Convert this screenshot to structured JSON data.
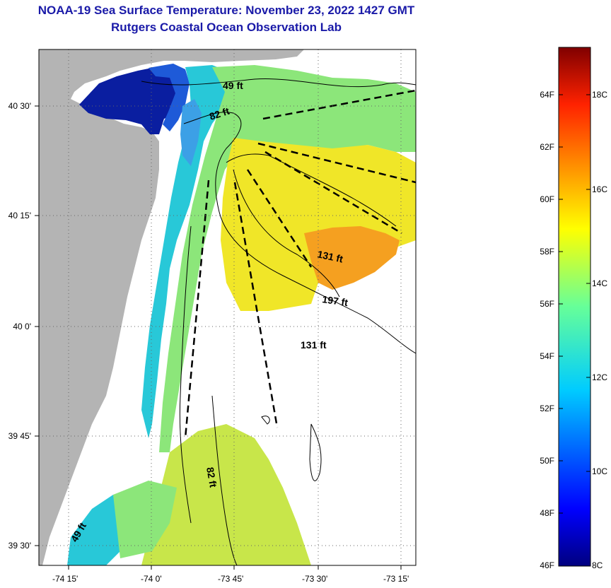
{
  "title": {
    "line1": "NOAA-19 Sea Surface Temperature:  November 23, 2022 1427 GMT",
    "line2": "Rutgers Coastal Ocean Observation Lab"
  },
  "axes": {
    "lat_ticks": [
      "40 30'",
      "40 15'",
      "40 0'",
      "39 45'",
      "39 30'"
    ],
    "lon_ticks": [
      "-74 15'",
      "-74 0'",
      "-73 45'",
      "-73 30'",
      "-73 15'"
    ]
  },
  "isobaths": [
    {
      "label": "49 ft",
      "depth_ft": 49
    },
    {
      "label": "82 ft",
      "depth_ft": 82
    },
    {
      "label": "131 ft",
      "depth_ft": 131
    },
    {
      "label": "197 ft",
      "depth_ft": 197
    },
    {
      "label": "131 ft",
      "depth_ft": 131
    },
    {
      "label": "82 ft",
      "depth_ft": 82
    },
    {
      "label": "49 ft",
      "depth_ft": 49
    }
  ],
  "colorbar": {
    "fahrenheit_labels": [
      "64F",
      "62F",
      "60F",
      "58F",
      "56F",
      "54F",
      "52F",
      "50F",
      "48F",
      "46F"
    ],
    "celsius_labels": [
      "18C",
      "16C",
      "14C",
      "12C",
      "10C",
      "8C"
    ],
    "range_c": [
      8,
      19
    ],
    "colormap": "jet"
  },
  "colors": {
    "land": "#b4b4b4",
    "title": "#1a1aa8",
    "cold": "#0a1ea0",
    "cool": "#28c8d8",
    "mid": "#a0e650",
    "warm": "#f0e628",
    "hot": "#f5a020"
  }
}
